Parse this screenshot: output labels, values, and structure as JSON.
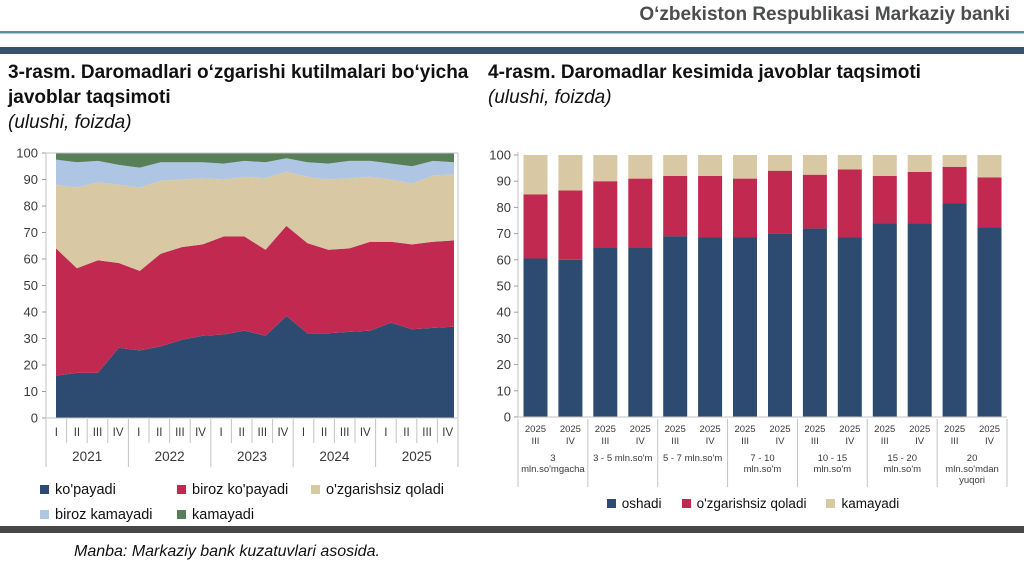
{
  "header": {
    "bank_name": "Oʻzbekiston Respublikasi Markaziy banki"
  },
  "figures": {
    "left": {
      "title": "3-rasm. Daromadlari oʻzgarishi kutilmalari boʻyicha javoblar taqsimoti",
      "subtitle": "(ulushi, foizda)"
    },
    "right": {
      "title": "4-rasm. Daromadlar kesimida javoblar taqsimoti",
      "subtitle": "(ulushi, foizda)"
    }
  },
  "colors": {
    "navy": "#2d4b71",
    "crimson": "#c22950",
    "beige": "#d9c8a4",
    "light_blue": "#aec6e3",
    "green": "#597f58",
    "header_bar": "#3a5272",
    "teal_rule": "#56909f",
    "divider": "#48484a"
  },
  "chart_data": [
    {
      "type": "area",
      "stacked": true,
      "title": "3-rasm. Daromadlari oʻzgarishi kutilmalari boʻyicha javoblar taqsimoti (ulushi, foizda)",
      "ylim": [
        0,
        100
      ],
      "ytick_step": 10,
      "grid": false,
      "legend_position": "bottom",
      "x_quarters": [
        "I",
        "II",
        "III",
        "IV",
        "I",
        "II",
        "III",
        "IV",
        "I",
        "II",
        "III",
        "IV",
        "I",
        "II",
        "III",
        "IV",
        "I",
        "II",
        "III",
        "IV"
      ],
      "x_years": [
        "2021",
        "2022",
        "2023",
        "2024",
        "2025"
      ],
      "series": [
        {
          "name": "ko'payadi",
          "color": "#2d4b71",
          "values": [
            16,
            17,
            17,
            26.5,
            25.5,
            27,
            29.5,
            31,
            31.5,
            33,
            31,
            38.5,
            32,
            32,
            32.5,
            33,
            36,
            33.5,
            34,
            34.5
          ]
        },
        {
          "name": "biroz ko'payadi",
          "color": "#c22950",
          "values": [
            48,
            39.5,
            42.5,
            32,
            30,
            35,
            35,
            34.5,
            37,
            35.5,
            32.5,
            34,
            34,
            31.5,
            31.5,
            33.5,
            30.5,
            32,
            32.5,
            32.5
          ]
        },
        {
          "name": "o'zgarishsiz qoladi",
          "color": "#d9c8a4",
          "values": [
            24,
            30.5,
            29.5,
            29.5,
            31.5,
            27.5,
            25.5,
            25,
            21.5,
            22.5,
            27,
            20.5,
            25,
            26.5,
            26.5,
            24.5,
            23.5,
            23,
            25,
            25
          ]
        },
        {
          "name": "biroz kamayadi",
          "color": "#aec6e3",
          "values": [
            9.5,
            9.5,
            8,
            7.5,
            7.5,
            7,
            6.5,
            6,
            6,
            6,
            6,
            5,
            5.5,
            6,
            6.5,
            6,
            6,
            6.5,
            5.5,
            4.5
          ]
        },
        {
          "name": "kamayadi",
          "color": "#597f58",
          "values": [
            2.5,
            3.5,
            3,
            4.5,
            5.5,
            3.5,
            3.5,
            3.5,
            4,
            3,
            3.5,
            2,
            3.5,
            4,
            3,
            3,
            4,
            5,
            3,
            3.5
          ]
        }
      ]
    },
    {
      "type": "bar",
      "stacked": true,
      "title": "4-rasm. Daromadlar kesimida javoblar taqsimoti (ulushi, foizda)",
      "ylim": [
        0,
        100
      ],
      "ytick_step": 10,
      "grid": false,
      "legend_position": "bottom",
      "x_labels": [
        [
          "2025",
          "III"
        ],
        [
          "2025",
          "IV"
        ],
        [
          "2025",
          "III"
        ],
        [
          "2025",
          "IV"
        ],
        [
          "2025",
          "III"
        ],
        [
          "2025",
          "IV"
        ],
        [
          "2025",
          "III"
        ],
        [
          "2025",
          "IV"
        ],
        [
          "2025",
          "III"
        ],
        [
          "2025",
          "IV"
        ],
        [
          "2025",
          "III"
        ],
        [
          "2025",
          "IV"
        ],
        [
          "2025",
          "III"
        ],
        [
          "2025",
          "IV"
        ]
      ],
      "groups": [
        [
          "3",
          "mln.so'mgacha"
        ],
        [
          "3 - 5 mln.so'm"
        ],
        [
          "5 - 7 mln.so'm"
        ],
        [
          "7 - 10",
          "mln.so'm"
        ],
        [
          "10 - 15",
          "mln.so'm"
        ],
        [
          "15 - 20",
          "mln.so'm"
        ],
        [
          "20",
          "mln.so'mdan",
          "yuqori"
        ]
      ],
      "series": [
        {
          "name": "oshadi",
          "color": "#2d4b71",
          "values": [
            60.5,
            60,
            64.5,
            64.5,
            69,
            68.5,
            68.5,
            70,
            72,
            68.5,
            74,
            74,
            81.5,
            72.5
          ]
        },
        {
          "name": "o'zgarishsiz qoladi",
          "color": "#c22950",
          "values": [
            24.5,
            26.5,
            25.5,
            26.5,
            23,
            23.5,
            22.5,
            24,
            20.5,
            26,
            18,
            19.5,
            14,
            19
          ]
        },
        {
          "name": "kamayadi",
          "color": "#d9c8a4",
          "values": [
            15,
            13.5,
            10,
            9,
            8,
            8,
            9,
            6,
            7.5,
            5.5,
            8,
            6.5,
            4.5,
            8.5
          ]
        }
      ]
    }
  ],
  "footer": {
    "source": "Manba: Markaziy bank kuzatuvlari asosida."
  }
}
